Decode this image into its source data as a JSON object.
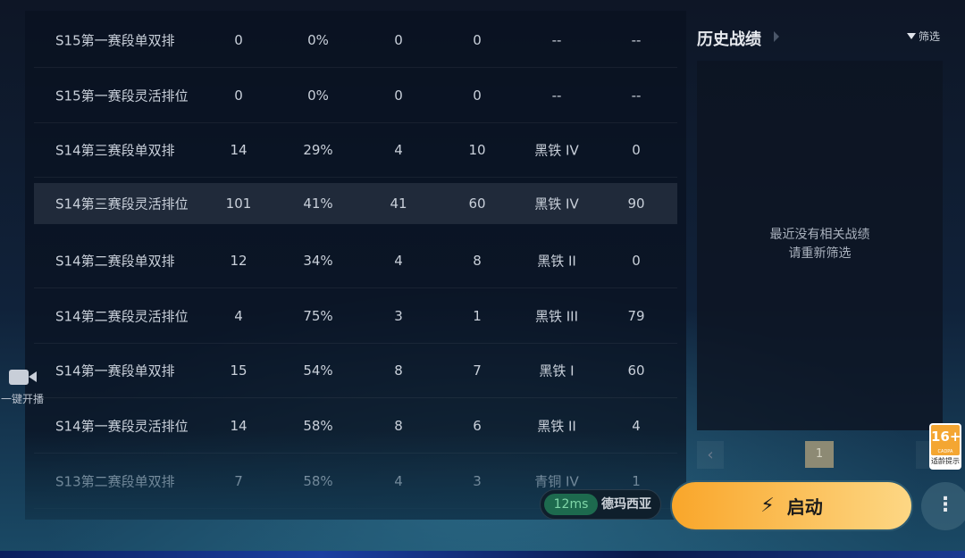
{
  "table": {
    "rows": [
      [
        "S15第一赛段单双排",
        "0",
        "0%",
        "0",
        "0",
        "--",
        "--"
      ],
      [
        "S15第一赛段灵活排位",
        "0",
        "0%",
        "0",
        "0",
        "--",
        "--"
      ],
      [
        "S14第三赛段单双排",
        "14",
        "29%",
        "4",
        "10",
        "黑铁 IV",
        "0"
      ],
      [
        "S14第三赛段灵活排位",
        "101",
        "41%",
        "41",
        "60",
        "黑铁 IV",
        "90"
      ],
      [
        "S14第二赛段单双排",
        "12",
        "34%",
        "4",
        "8",
        "黑铁 II",
        "0"
      ],
      [
        "S14第二赛段灵活排位",
        "4",
        "75%",
        "3",
        "1",
        "黑铁 III",
        "79"
      ],
      [
        "S14第一赛段单双排",
        "15",
        "54%",
        "8",
        "7",
        "黑铁 I",
        "60"
      ],
      [
        "S14第一赛段灵活排位",
        "14",
        "58%",
        "8",
        "6",
        "黑铁 II",
        "4"
      ],
      [
        "S13第二赛段单双排",
        "7",
        "58%",
        "4",
        "3",
        "青铜 IV",
        "1"
      ]
    ],
    "highlighted_row": 3
  },
  "left": {
    "stream_label": "一键开播",
    "icon": "video-camera-icon"
  },
  "history": {
    "title": "历史战绩",
    "filter_label": "筛选",
    "empty_line1": "最近没有相关战绩",
    "empty_line2": "请重新筛选",
    "page": "1",
    "prev": "‹"
  },
  "age_rating": {
    "label": "16+",
    "org": "CADPA",
    "note": "适龄提示"
  },
  "footer": {
    "ping": "12ms",
    "server": "德玛西亚",
    "start_label": "启动",
    "bolt": "⚡",
    "more": "⋮"
  },
  "colors": {
    "start_from": "#f9a62a",
    "start_to": "#fdd784",
    "ping_bg": "#1d6a4e"
  }
}
